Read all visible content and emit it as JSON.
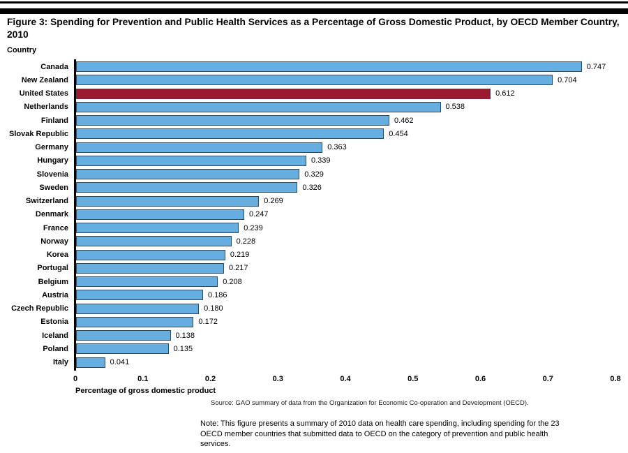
{
  "header": {
    "title": "Figure 3: Spending for Prevention and Public Health Services as a Percentage of Gross Domestic Product, by OECD Member Country, 2010"
  },
  "chart_data": {
    "type": "bar",
    "orientation": "horizontal",
    "title": "Spending for Prevention and Public Health Services as a Percentage of Gross Domestic Product, by OECD Member Country, 2010",
    "ylabel": "Country",
    "xlabel": "Percentage of gross domestic product",
    "xlim": [
      0,
      0.8
    ],
    "x_tick_labels": [
      "0",
      "0.1",
      "0.2",
      "0.3",
      "0.4",
      "0.5",
      "0.6",
      "0.7",
      "0.8"
    ],
    "grid": false,
    "legend": false,
    "categories": [
      "Canada",
      "New Zealand",
      "United States",
      "Netherlands",
      "Finland",
      "Slovak Republic",
      "Germany",
      "Hungary",
      "Slovenia",
      "Sweden",
      "Switzerland",
      "Denmark",
      "France",
      "Norway",
      "Korea",
      "Portugal",
      "Belgium",
      "Austria",
      "Czech Republic",
      "Estonia",
      "Iceland",
      "Poland",
      "Italy"
    ],
    "values": [
      0.747,
      0.704,
      0.612,
      0.538,
      0.462,
      0.454,
      0.363,
      0.339,
      0.329,
      0.326,
      0.269,
      0.247,
      0.239,
      0.228,
      0.219,
      0.217,
      0.208,
      0.186,
      0.18,
      0.172,
      0.138,
      0.135,
      0.041
    ],
    "value_label_decimals": 3,
    "highlight_category": "United States",
    "colors": {
      "bar_default": "#66AEDF",
      "bar_highlight": "#9B1B2E",
      "bar_border": "#3a4750",
      "axis_line": "#000000"
    }
  },
  "footer": {
    "source": "Source: GAO summary of data from the Organization for Economic Co-operation and Development (OECD).",
    "note": "Note: This figure presents a summary of 2010 data on health care spending, including spending for the 23 OECD member countries that submitted data to OECD on the category of prevention and public health services."
  }
}
